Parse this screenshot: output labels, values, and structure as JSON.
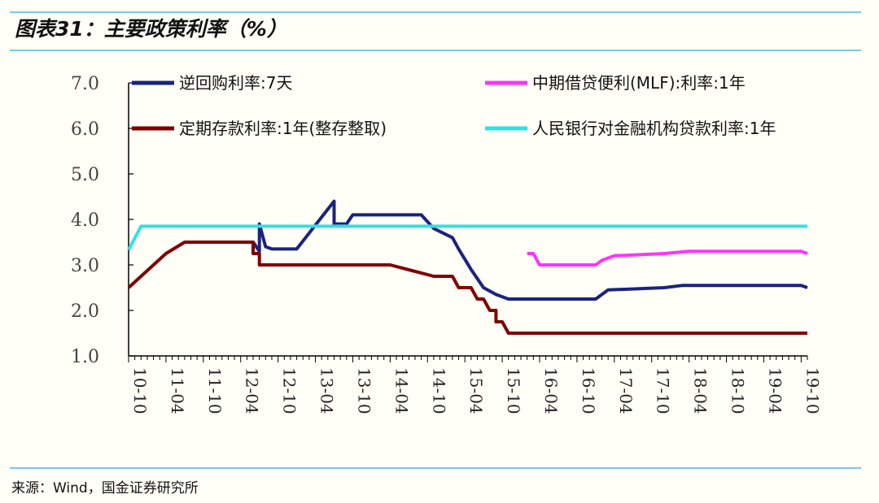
{
  "title": "图表31：主要政策利率（%）",
  "source": "来源：Wind，国金证券研究所",
  "chart_data": {
    "type": "line",
    "ylim": [
      1.0,
      7.0
    ],
    "yticks": [
      "7.0",
      "6.0",
      "5.0",
      "4.0",
      "3.0",
      "2.0",
      "1.0"
    ],
    "x_range": [
      "2010-10",
      "2019-11"
    ],
    "xticks": [
      "10-10",
      "11-04",
      "11-10",
      "12-04",
      "12-10",
      "13-04",
      "13-10",
      "14-04",
      "14-10",
      "15-04",
      "15-10",
      "16-04",
      "16-10",
      "17-04",
      "17-10",
      "18-04",
      "18-10",
      "19-04",
      "19-10"
    ],
    "legend_placement": "top",
    "series": [
      {
        "name": "逆回购利率:7天",
        "color": "#1a237e",
        "points": [
          [
            "2012-06",
            3.3
          ],
          [
            "2012-06",
            3.5
          ],
          [
            "2012-07",
            3.3
          ],
          [
            "2012-07",
            3.9
          ],
          [
            "2012-08",
            3.4
          ],
          [
            "2012-09",
            3.35
          ],
          [
            "2013-01",
            3.35
          ],
          [
            "2013-03",
            3.7
          ],
          [
            "2013-07",
            4.4
          ],
          [
            "2013-07",
            3.9
          ],
          [
            "2013-09",
            3.9
          ],
          [
            "2013-10",
            4.1
          ],
          [
            "2014-09",
            4.1
          ],
          [
            "2014-11",
            3.8
          ],
          [
            "2015-02",
            3.6
          ],
          [
            "2015-03",
            3.35
          ],
          [
            "2015-05",
            2.9
          ],
          [
            "2015-07",
            2.5
          ],
          [
            "2015-09",
            2.35
          ],
          [
            "2015-11",
            2.25
          ],
          [
            "2017-01",
            2.25
          ],
          [
            "2017-02",
            2.35
          ],
          [
            "2017-03",
            2.45
          ],
          [
            "2017-12",
            2.5
          ],
          [
            "2018-03",
            2.55
          ],
          [
            "2019-10",
            2.55
          ],
          [
            "2019-11",
            2.5
          ]
        ]
      },
      {
        "name": "中期借贷便利(MLF):利率:1年",
        "color": "#ff33ff",
        "points": [
          [
            "2016-02",
            3.25
          ],
          [
            "2016-03",
            3.25
          ],
          [
            "2016-04",
            3.0
          ],
          [
            "2017-01",
            3.0
          ],
          [
            "2017-02",
            3.1
          ],
          [
            "2017-04",
            3.2
          ],
          [
            "2017-12",
            3.25
          ],
          [
            "2018-04",
            3.3
          ],
          [
            "2019-10",
            3.3
          ],
          [
            "2019-11",
            3.25
          ]
        ]
      },
      {
        "name": "定期存款利率:1年(整存整取)",
        "color": "#800000",
        "points": [
          [
            "2010-10",
            2.5
          ],
          [
            "2010-12",
            2.75
          ],
          [
            "2011-02",
            3.0
          ],
          [
            "2011-04",
            3.25
          ],
          [
            "2011-07",
            3.5
          ],
          [
            "2012-06",
            3.5
          ],
          [
            "2012-06",
            3.25
          ],
          [
            "2012-07",
            3.25
          ],
          [
            "2012-07",
            3.0
          ],
          [
            "2014-04",
            3.0
          ],
          [
            "2014-11",
            2.75
          ],
          [
            "2015-02",
            2.75
          ],
          [
            "2015-03",
            2.5
          ],
          [
            "2015-05",
            2.5
          ],
          [
            "2015-06",
            2.25
          ],
          [
            "2015-07",
            2.25
          ],
          [
            "2015-08",
            2.0
          ],
          [
            "2015-09",
            2.0
          ],
          [
            "2015-09",
            1.75
          ],
          [
            "2015-10",
            1.75
          ],
          [
            "2015-11",
            1.5
          ],
          [
            "2019-11",
            1.5
          ]
        ]
      },
      {
        "name": "人民银行对金融机构贷款利率:1年",
        "color": "#33e0e0",
        "points": [
          [
            "2010-10",
            3.33
          ],
          [
            "2010-12",
            3.85
          ],
          [
            "2019-11",
            3.85
          ]
        ]
      }
    ]
  }
}
